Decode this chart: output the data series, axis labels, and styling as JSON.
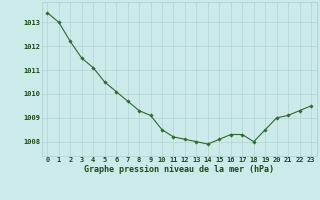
{
  "x": [
    0,
    1,
    2,
    3,
    4,
    5,
    6,
    7,
    8,
    9,
    10,
    11,
    12,
    13,
    14,
    15,
    16,
    17,
    18,
    19,
    20,
    21,
    22,
    23
  ],
  "y": [
    1013.4,
    1013.0,
    1012.2,
    1011.5,
    1011.1,
    1010.5,
    1010.1,
    1009.7,
    1009.3,
    1009.1,
    1008.5,
    1008.2,
    1008.1,
    1008.0,
    1007.9,
    1008.1,
    1008.3,
    1008.3,
    1008.0,
    1008.5,
    1009.0,
    1009.1,
    1009.3,
    1009.5
  ],
  "line_color": "#2d6a2d",
  "marker": "D",
  "marker_size": 1.8,
  "bg_color": "#cceaea",
  "grid_color": "#aacece",
  "xlabel": "Graphe pression niveau de la mer (hPa)",
  "xlabel_color": "#1a4a1a",
  "xlabel_fontsize": 6.0,
  "tick_color": "#1a4a1a",
  "tick_fontsize": 5.0,
  "ytick_labels": [
    "1008",
    "1009",
    "1010",
    "1011",
    "1012",
    "1013"
  ],
  "ylim": [
    1007.4,
    1013.85
  ],
  "xlim": [
    -0.5,
    23.5
  ]
}
